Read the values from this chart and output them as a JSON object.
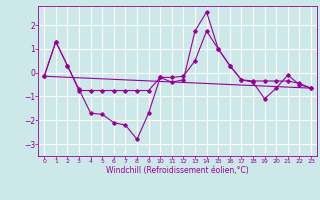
{
  "xlabel": "Windchill (Refroidissement éolien,°C)",
  "bg_color": "#cce8e8",
  "grid_color": "#ffffff",
  "line_color": "#990099",
  "xlim": [
    -0.5,
    23.5
  ],
  "ylim": [
    -3.5,
    2.8
  ],
  "yticks": [
    -3,
    -2,
    -1,
    0,
    1,
    2
  ],
  "xticks": [
    0,
    1,
    2,
    3,
    4,
    5,
    6,
    7,
    8,
    9,
    10,
    11,
    12,
    13,
    14,
    15,
    16,
    17,
    18,
    19,
    20,
    21,
    22,
    23
  ],
  "line1_x": [
    0,
    1,
    2,
    3,
    4,
    5,
    6,
    7,
    8,
    9,
    10,
    11,
    12,
    13,
    14,
    15,
    16,
    17,
    18,
    19,
    20,
    21,
    22,
    23
  ],
  "line1_y": [
    -0.15,
    1.3,
    0.3,
    -0.7,
    -1.7,
    -1.75,
    -2.1,
    -2.2,
    -2.8,
    -1.7,
    -0.2,
    -0.4,
    -0.3,
    1.75,
    2.55,
    1.0,
    0.3,
    -0.3,
    -0.4,
    -1.1,
    -0.65,
    -0.1,
    -0.5,
    -0.65
  ],
  "line2_x": [
    0,
    1,
    2,
    3,
    4,
    5,
    6,
    7,
    8,
    9,
    10,
    11,
    12,
    13,
    14,
    15,
    16,
    17,
    18,
    19,
    20,
    21,
    22,
    23
  ],
  "line2_y": [
    -0.15,
    1.3,
    0.3,
    -0.75,
    -0.75,
    -0.75,
    -0.75,
    -0.75,
    -0.75,
    -0.75,
    -0.2,
    -0.2,
    -0.15,
    0.5,
    1.75,
    1.0,
    0.3,
    -0.3,
    -0.35,
    -0.35,
    -0.35,
    -0.35,
    -0.45,
    -0.65
  ],
  "line3_x": [
    0,
    23
  ],
  "line3_y": [
    -0.15,
    -0.65
  ]
}
